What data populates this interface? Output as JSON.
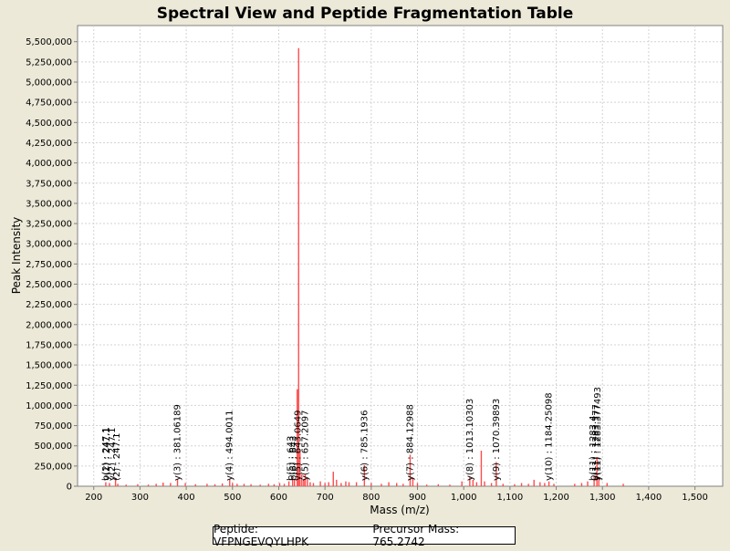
{
  "footer": {
    "peptide_text": "Peptide: VFPNGEVQYLHPK",
    "precursor_text": "Precursor Mass: 765.2742"
  },
  "colors": {
    "background": "#ece9d8",
    "plot_background": "#ffffff",
    "grid": "#d3d3d3",
    "peak": "#ff4c4c",
    "axis": "#808080"
  },
  "chart_data": {
    "type": "bar",
    "title": "Spectral View and Peptide Fragmentation Table",
    "xlabel": "Mass (m/z)",
    "ylabel": "Peak Intensity",
    "xlim": [
      165,
      1560
    ],
    "ylim": [
      0,
      5700000
    ],
    "grid": true,
    "x_ticks": [
      200,
      300,
      400,
      500,
      600,
      700,
      800,
      900,
      1000,
      1100,
      1200,
      1300,
      1400,
      1500
    ],
    "x_tick_labels": [
      "200",
      "300",
      "400",
      "500",
      "600",
      "700",
      "800",
      "900",
      "1,000",
      "1,100",
      "1,200",
      "1,300",
      "1,400",
      "1,500"
    ],
    "y_ticks": [
      0,
      250000,
      500000,
      750000,
      1000000,
      1250000,
      1500000,
      1750000,
      2000000,
      2250000,
      2500000,
      2750000,
      3000000,
      3250000,
      3500000,
      3750000,
      4000000,
      4250000,
      4500000,
      4750000,
      5000000,
      5250000,
      5500000
    ],
    "y_tick_labels": [
      "0",
      "250,000",
      "500,000",
      "750,000",
      "1,000,000",
      "1,250,000",
      "1,500,000",
      "1,750,000",
      "2,000,000",
      "2,250,000",
      "2,500,000",
      "2,750,000",
      "3,000,000",
      "3,250,000",
      "3,500,000",
      "3,750,000",
      "4,000,000",
      "4,250,000",
      "4,500,000",
      "4,750,000",
      "5,000,000",
      "5,250,000",
      "5,500,000"
    ],
    "peaks": [
      {
        "mz": 226,
        "intensity": 50000
      },
      {
        "mz": 234,
        "intensity": 40000
      },
      {
        "mz": 247.1,
        "intensity": 100000
      },
      {
        "mz": 252,
        "intensity": 30000
      },
      {
        "mz": 270,
        "intensity": 20000
      },
      {
        "mz": 295,
        "intensity": 25000
      },
      {
        "mz": 318,
        "intensity": 20000
      },
      {
        "mz": 335,
        "intensity": 30000
      },
      {
        "mz": 350,
        "intensity": 45000
      },
      {
        "mz": 366,
        "intensity": 40000
      },
      {
        "mz": 381.1,
        "intensity": 90000
      },
      {
        "mz": 398,
        "intensity": 40000
      },
      {
        "mz": 420,
        "intensity": 25000
      },
      {
        "mz": 445,
        "intensity": 30000
      },
      {
        "mz": 462,
        "intensity": 25000
      },
      {
        "mz": 478,
        "intensity": 35000
      },
      {
        "mz": 494,
        "intensity": 90000
      },
      {
        "mz": 500,
        "intensity": 40000
      },
      {
        "mz": 510,
        "intensity": 30000
      },
      {
        "mz": 525,
        "intensity": 30000
      },
      {
        "mz": 540,
        "intensity": 25000
      },
      {
        "mz": 560,
        "intensity": 20000
      },
      {
        "mz": 578,
        "intensity": 30000
      },
      {
        "mz": 590,
        "intensity": 25000
      },
      {
        "mz": 602,
        "intensity": 40000
      },
      {
        "mz": 612,
        "intensity": 30000
      },
      {
        "mz": 622,
        "intensity": 60000
      },
      {
        "mz": 630,
        "intensity": 120000
      },
      {
        "mz": 634,
        "intensity": 80000
      },
      {
        "mz": 640,
        "intensity": 1200000
      },
      {
        "mz": 643,
        "intensity": 5420000
      },
      {
        "mz": 646,
        "intensity": 450000
      },
      {
        "mz": 650,
        "intensity": 150000
      },
      {
        "mz": 654,
        "intensity": 90000
      },
      {
        "mz": 657.2,
        "intensity": 150000
      },
      {
        "mz": 662,
        "intensity": 100000
      },
      {
        "mz": 668,
        "intensity": 50000
      },
      {
        "mz": 675,
        "intensity": 40000
      },
      {
        "mz": 690,
        "intensity": 60000
      },
      {
        "mz": 700,
        "intensity": 40000
      },
      {
        "mz": 708,
        "intensity": 50000
      },
      {
        "mz": 718,
        "intensity": 180000
      },
      {
        "mz": 725,
        "intensity": 80000
      },
      {
        "mz": 735,
        "intensity": 40000
      },
      {
        "mz": 745,
        "intensity": 60000
      },
      {
        "mz": 752,
        "intensity": 50000
      },
      {
        "mz": 768,
        "intensity": 50000
      },
      {
        "mz": 785.2,
        "intensity": 260000
      },
      {
        "mz": 800,
        "intensity": 40000
      },
      {
        "mz": 822,
        "intensity": 30000
      },
      {
        "mz": 838,
        "intensity": 50000
      },
      {
        "mz": 855,
        "intensity": 40000
      },
      {
        "mz": 869,
        "intensity": 30000
      },
      {
        "mz": 884.1,
        "intensity": 390000
      },
      {
        "mz": 890,
        "intensity": 100000
      },
      {
        "mz": 900,
        "intensity": 40000
      },
      {
        "mz": 920,
        "intensity": 20000
      },
      {
        "mz": 945,
        "intensity": 25000
      },
      {
        "mz": 970,
        "intensity": 20000
      },
      {
        "mz": 996,
        "intensity": 60000
      },
      {
        "mz": 1013.1,
        "intensity": 120000
      },
      {
        "mz": 1020,
        "intensity": 80000
      },
      {
        "mz": 1028,
        "intensity": 50000
      },
      {
        "mz": 1038,
        "intensity": 440000
      },
      {
        "mz": 1045,
        "intensity": 60000
      },
      {
        "mz": 1060,
        "intensity": 40000
      },
      {
        "mz": 1070.4,
        "intensity": 300000
      },
      {
        "mz": 1085,
        "intensity": 30000
      },
      {
        "mz": 1110,
        "intensity": 25000
      },
      {
        "mz": 1125,
        "intensity": 40000
      },
      {
        "mz": 1140,
        "intensity": 30000
      },
      {
        "mz": 1152,
        "intensity": 80000
      },
      {
        "mz": 1165,
        "intensity": 50000
      },
      {
        "mz": 1175,
        "intensity": 40000
      },
      {
        "mz": 1184.3,
        "intensity": 60000
      },
      {
        "mz": 1195,
        "intensity": 30000
      },
      {
        "mz": 1240,
        "intensity": 30000
      },
      {
        "mz": 1255,
        "intensity": 40000
      },
      {
        "mz": 1268,
        "intensity": 60000
      },
      {
        "mz": 1282,
        "intensity": 120000
      },
      {
        "mz": 1288,
        "intensity": 360000
      },
      {
        "mz": 1292,
        "intensity": 90000
      },
      {
        "mz": 1310,
        "intensity": 40000
      },
      {
        "mz": 1345,
        "intensity": 30000
      }
    ],
    "annotations": [
      {
        "mz": 226,
        "text": "b(2) : 247.1"
      },
      {
        "mz": 228,
        "text": "y(1) : 247.1"
      },
      {
        "mz": 240,
        "text": "y(2) : 247.1"
      },
      {
        "mz": 250,
        "text": "(2) : 247.1"
      },
      {
        "mz": 381.1,
        "text": "y(3) : 381.06189"
      },
      {
        "mz": 494,
        "text": "y(4) : 494.0011"
      },
      {
        "mz": 626,
        "text": "b(5) : 643"
      },
      {
        "mz": 632,
        "text": "b(6) : 643"
      },
      {
        "mz": 642,
        "text": "y(5) : 643.0649"
      },
      {
        "mz": 657.2,
        "text": "y(5) : 657.2097"
      },
      {
        "mz": 785.2,
        "text": "y(6) : 785.1936"
      },
      {
        "mz": 884.1,
        "text": "y(7) : 884.12988"
      },
      {
        "mz": 1013.1,
        "text": "y(8) : 1013.10303"
      },
      {
        "mz": 1070.4,
        "text": "y(9) : 1070.39893"
      },
      {
        "mz": 1184.3,
        "text": "y(10) : 1184.25098"
      },
      {
        "mz": 1280,
        "text": "b(11) : 1283.4"
      },
      {
        "mz": 1286,
        "text": "y(11) : 1283.377"
      },
      {
        "mz": 1290,
        "text": "y(11) : 1283.377493"
      }
    ]
  }
}
